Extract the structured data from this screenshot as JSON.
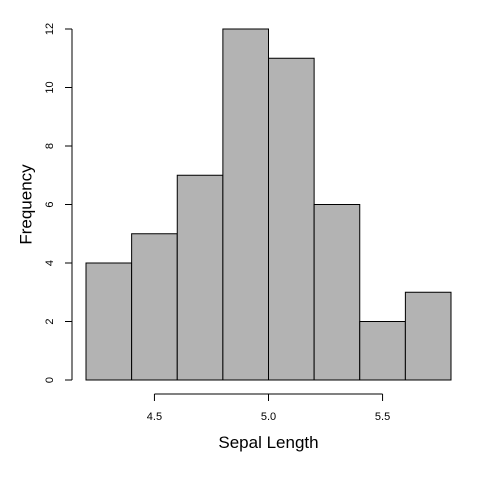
{
  "chart_data": {
    "type": "bar",
    "subtype": "histogram",
    "title": "",
    "xlabel": "Sepal Length",
    "ylabel": "Frequency",
    "bins": [
      {
        "start": 4.2,
        "end": 4.4,
        "count": 4
      },
      {
        "start": 4.4,
        "end": 4.6,
        "count": 5
      },
      {
        "start": 4.6,
        "end": 4.8,
        "count": 7
      },
      {
        "start": 4.8,
        "end": 5.0,
        "count": 12
      },
      {
        "start": 5.0,
        "end": 5.2,
        "count": 11
      },
      {
        "start": 5.2,
        "end": 5.4,
        "count": 6
      },
      {
        "start": 5.4,
        "end": 5.6,
        "count": 2
      },
      {
        "start": 5.6,
        "end": 5.8,
        "count": 3
      }
    ],
    "xlim": [
      4.2,
      5.8
    ],
    "ylim": [
      0,
      12
    ],
    "x_ticks": [
      4.5,
      5.0,
      5.5
    ],
    "x_tick_labels": [
      "4.5",
      "5.0",
      "5.5"
    ],
    "y_ticks": [
      0,
      2,
      4,
      6,
      8,
      10,
      12
    ],
    "y_tick_labels": [
      "0",
      "2",
      "4",
      "6",
      "8",
      "10",
      "12"
    ],
    "grid": false,
    "legend": "none",
    "bar_color": "#b3b3b3",
    "edge_color": "#000000"
  }
}
